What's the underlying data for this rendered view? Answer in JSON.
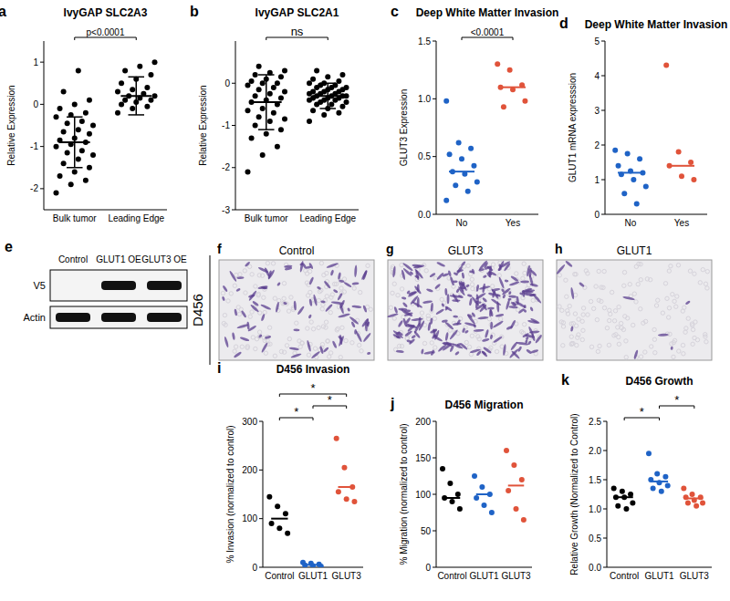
{
  "chart_data": [
    {
      "type": "dot",
      "panel": "a",
      "title": "IvyGAP SLC2A3",
      "y_label": "Relative Expression",
      "categories": [
        "Bulk tumor",
        "Leading Edge"
      ],
      "colors": [
        "#000000",
        "#000000"
      ],
      "values": [
        [
          -2.1,
          -1.9,
          -1.8,
          -1.7,
          -1.6,
          -1.5,
          -1.4,
          -1.3,
          -1.2,
          -1.15,
          -1.1,
          -1.0,
          -0.95,
          -0.9,
          -0.85,
          -0.8,
          -0.7,
          -0.65,
          -0.6,
          -0.5,
          -0.45,
          -0.4,
          -0.3,
          -0.25,
          -0.2,
          -0.1,
          0.0,
          0.1,
          0.3,
          0.8
        ],
        [
          -0.2,
          -0.1,
          -0.05,
          0.0,
          0.05,
          0.1,
          0.1,
          0.15,
          0.2,
          0.2,
          0.25,
          0.3,
          0.35,
          0.4,
          0.5,
          0.6,
          0.7,
          0.8,
          0.9,
          1.0
        ]
      ],
      "center": [
        -0.9,
        0.2
      ],
      "error": [
        0.6,
        0.45
      ],
      "ylim": [
        -2.5,
        1.5
      ],
      "yticks": [
        -2,
        -1,
        0,
        1
      ],
      "annotations": [
        {
          "text": "p<0.0001",
          "from": 0,
          "to": 1
        }
      ]
    },
    {
      "type": "dot",
      "panel": "b",
      "title": "IvyGAP SLC2A1",
      "y_label": "Relative Expression",
      "categories": [
        "Bulk tumor",
        "Leading Edge"
      ],
      "colors": [
        "#000000",
        "#000000"
      ],
      "values": [
        [
          -2.1,
          -1.7,
          -1.5,
          -1.3,
          -1.2,
          -1.1,
          -1.0,
          -0.9,
          -0.85,
          -0.8,
          -0.7,
          -0.65,
          -0.6,
          -0.5,
          -0.45,
          -0.4,
          -0.35,
          -0.3,
          -0.25,
          -0.2,
          -0.15,
          -0.1,
          -0.05,
          0.0,
          0.0,
          0.05,
          0.1,
          0.15,
          0.2,
          0.25,
          0.3,
          0.4
        ],
        [
          -0.9,
          -0.75,
          -0.7,
          -0.65,
          -0.6,
          -0.55,
          -0.5,
          -0.5,
          -0.45,
          -0.45,
          -0.4,
          -0.4,
          -0.4,
          -0.35,
          -0.35,
          -0.35,
          -0.3,
          -0.3,
          -0.3,
          -0.3,
          -0.25,
          -0.25,
          -0.25,
          -0.2,
          -0.2,
          -0.2,
          -0.15,
          -0.15,
          -0.1,
          -0.1,
          -0.1,
          -0.05,
          -0.05,
          0.0,
          0.0,
          0.05,
          0.1,
          0.15,
          0.2,
          0.3
        ]
      ],
      "center": [
        -0.45,
        -0.3
      ],
      "error": [
        0.65,
        0.3
      ],
      "ylim": [
        -3,
        1
      ],
      "yticks": [
        -3,
        -2,
        -1,
        0
      ],
      "annotations": [
        {
          "text": "ns",
          "from": 0,
          "to": 1
        }
      ]
    },
    {
      "type": "dot",
      "panel": "c",
      "title": "Deep White Matter Invasion",
      "y_label": "GLUT3 Expression",
      "categories": [
        "No",
        "Yes"
      ],
      "colors": [
        "#1f63c6",
        "#e0533a"
      ],
      "values": [
        [
          0.98,
          0.62,
          0.57,
          0.52,
          0.48,
          0.42,
          0.37,
          0.35,
          0.28,
          0.25,
          0.2,
          0.12
        ],
        [
          1.3,
          1.25,
          1.12,
          1.1,
          1.08,
          0.98,
          0.93
        ]
      ],
      "center": [
        0.37,
        1.1
      ],
      "ylim": [
        0,
        1.5
      ],
      "yticks": [
        {
          "value": 0,
          "label": "0.0"
        },
        0.5,
        {
          "value": 1,
          "label": "1.0"
        },
        1.5
      ],
      "annotations": [
        {
          "text": "<0.0001",
          "from": 0,
          "to": 1
        }
      ]
    },
    {
      "type": "dot",
      "panel": "d",
      "title": "Deep White Matter Invasion",
      "y_label": "GLUT1 mRNA expresssion",
      "categories": [
        "No",
        "Yes"
      ],
      "colors": [
        "#1f63c6",
        "#e0533a"
      ],
      "values": [
        [
          1.85,
          1.75,
          1.6,
          1.4,
          1.25,
          1.2,
          1.15,
          1.0,
          0.8,
          0.6,
          0.3
        ],
        [
          4.3,
          1.8,
          1.5,
          1.4,
          1.1,
          1.0
        ]
      ],
      "center": [
        1.2,
        1.4
      ],
      "ylim": [
        0,
        5
      ],
      "yticks": [
        0,
        1,
        2,
        3,
        4,
        5
      ]
    },
    {
      "type": "dot",
      "panel": "i",
      "title": "D456 Invasion",
      "y_label": "% Invasion (normalized to control)",
      "categories": [
        "Control",
        "GLUT1",
        "GLUT3"
      ],
      "colors": [
        "#000000",
        "#1f63c6",
        "#e0533a"
      ],
      "values": [
        [
          145,
          125,
          110,
          90,
          80,
          70
        ],
        [
          10,
          8,
          6,
          4,
          3,
          2
        ],
        [
          265,
          205,
          165,
          155,
          140,
          135
        ]
      ],
      "center": [
        100,
        5,
        165
      ],
      "ylim": [
        0,
        300
      ],
      "yticks": [
        0,
        100,
        200,
        300
      ],
      "annotations": [
        {
          "text": "*",
          "from": 0,
          "to": 1
        },
        {
          "text": "*",
          "from": 1,
          "to": 2
        },
        {
          "text": "*",
          "from": 0,
          "to": 2
        }
      ]
    },
    {
      "type": "dot",
      "panel": "j",
      "title": "D456 Migration",
      "y_label": "% Migration (normalized to control)",
      "categories": [
        "Control",
        "GLUT1",
        "GLUT3"
      ],
      "colors": [
        "#000000",
        "#1f63c6",
        "#e0533a"
      ],
      "values": [
        [
          135,
          115,
          100,
          95,
          90,
          80
        ],
        [
          125,
          110,
          100,
          95,
          85,
          75
        ],
        [
          160,
          140,
          120,
          105,
          80,
          65
        ]
      ],
      "center": [
        95,
        100,
        112
      ],
      "ylim": [
        0,
        200
      ],
      "yticks": [
        0,
        50,
        100,
        150,
        200
      ]
    },
    {
      "type": "dot",
      "panel": "k",
      "title": "D456 Growth",
      "y_label": "Relative Growth (Normalized to Control)",
      "categories": [
        "Control",
        "GLUT1",
        "GLUT3"
      ],
      "colors": [
        "#000000",
        "#1f63c6",
        "#e0533a"
      ],
      "values": [
        [
          1.35,
          1.3,
          1.25,
          1.2,
          1.2,
          1.1,
          1.05,
          1.0
        ],
        [
          1.95,
          1.6,
          1.55,
          1.5,
          1.45,
          1.4,
          1.35,
          1.3
        ],
        [
          1.35,
          1.25,
          1.2,
          1.2,
          1.15,
          1.1,
          1.1,
          1.05
        ]
      ],
      "center": [
        1.2,
        1.47,
        1.18
      ],
      "ylim": [
        0,
        2.5
      ],
      "yticks": [
        {
          "value": 0,
          "label": "0.0"
        },
        0.5,
        {
          "value": 1,
          "label": "1.0"
        },
        1.5,
        {
          "value": 2,
          "label": "2.0"
        },
        2.5
      ],
      "annotations": [
        {
          "text": "*",
          "from": 0,
          "to": 1
        },
        {
          "text": "*",
          "from": 1,
          "to": 2
        }
      ]
    }
  ],
  "figure": {
    "side_label": "D456",
    "blot": {
      "panel": "e",
      "lanes": [
        "Control",
        "GLUT1 OE",
        "GLUT3 OE"
      ],
      "rows": [
        "V5",
        "Actin"
      ],
      "bands": [
        [
          false,
          true,
          true
        ],
        [
          true,
          true,
          true
        ]
      ]
    },
    "micrographs": [
      {
        "panel": "f",
        "title": "Control"
      },
      {
        "panel": "g",
        "title": "GLUT3"
      },
      {
        "panel": "h",
        "title": "GLUT1"
      }
    ]
  }
}
